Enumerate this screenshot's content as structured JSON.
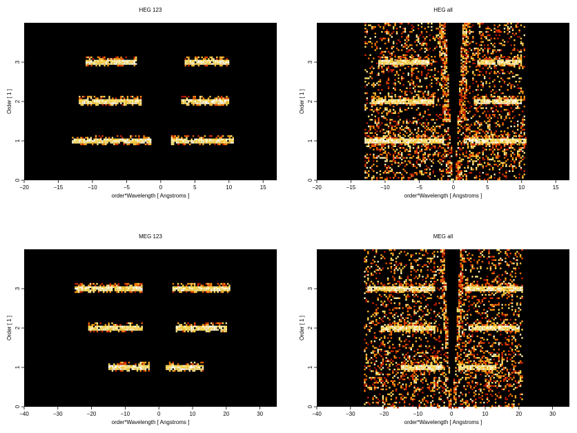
{
  "chart_data": [
    {
      "type": "heatmap",
      "title": "HEG 123",
      "xlabel": "order*Wavelength [ Angstroms ]",
      "ylabel": "Order [ 1 ]",
      "xlim": [
        -20,
        17
      ],
      "ylim": [
        0,
        4
      ],
      "xticks": [
        -20,
        -15,
        -10,
        -5,
        0,
        5,
        10,
        15
      ],
      "yticks": [
        0,
        1,
        2,
        3
      ],
      "colormap": "black-red-orange-yellow-white",
      "background": "#000000",
      "bands": [
        {
          "order": 1,
          "segments": [
            [
              -13,
              -1.5
            ],
            [
              1.5,
              10.5
            ]
          ]
        },
        {
          "order": 2,
          "segments": [
            [
              -12,
              -3
            ],
            [
              3,
              10
            ]
          ]
        },
        {
          "order": 3,
          "segments": [
            [
              -11,
              -3.5
            ],
            [
              3.5,
              10
            ]
          ]
        }
      ],
      "wedges": false
    },
    {
      "type": "heatmap",
      "title": "HEG all",
      "xlabel": "order*Wavelength [ Angstroms ]",
      "ylabel": "Order [ 1 ]",
      "xlim": [
        -20,
        17
      ],
      "ylim": [
        0,
        4
      ],
      "xticks": [
        -20,
        -15,
        -10,
        -5,
        0,
        5,
        10,
        15
      ],
      "yticks": [
        0,
        1,
        2,
        3
      ],
      "colormap": "black-red-orange-yellow-white",
      "background": "#000000",
      "bands": [
        {
          "order": 1,
          "segments": [
            [
              -13,
              -1.5
            ],
            [
              1.5,
              10.5
            ]
          ]
        },
        {
          "order": 2,
          "segments": [
            [
              -12,
              -3
            ],
            [
              3,
              10
            ]
          ]
        },
        {
          "order": 3,
          "segments": [
            [
              -11,
              -3.5
            ],
            [
              3.5,
              10
            ]
          ]
        }
      ],
      "wedges": true,
      "noise_range": [
        -13,
        10.5
      ]
    },
    {
      "type": "heatmap",
      "title": "MEG 123",
      "xlabel": "order*Wavelength [ Angstroms ]",
      "ylabel": "Order [ 1 ]",
      "xlim": [
        -40,
        35
      ],
      "ylim": [
        0,
        4
      ],
      "xticks": [
        -40,
        -30,
        -20,
        -10,
        0,
        10,
        20,
        30
      ],
      "yticks": [
        0,
        1,
        2,
        3
      ],
      "colormap": "black-red-orange-yellow-white",
      "background": "#000000",
      "bands": [
        {
          "order": 1,
          "segments": [
            [
              -15,
              -3
            ],
            [
              2,
              13
            ]
          ]
        },
        {
          "order": 2,
          "segments": [
            [
              -21,
              -5
            ],
            [
              5,
              20
            ]
          ]
        },
        {
          "order": 3,
          "segments": [
            [
              -25,
              -5
            ],
            [
              4,
              21
            ]
          ]
        }
      ],
      "wedges": false
    },
    {
      "type": "heatmap",
      "title": "MEG all",
      "xlabel": "order*Wavelength [ Angstroms ]",
      "ylabel": "Order [ 1 ]",
      "xlim": [
        -40,
        35
      ],
      "ylim": [
        0,
        4
      ],
      "xticks": [
        -40,
        -30,
        -20,
        -10,
        0,
        10,
        20,
        30
      ],
      "yticks": [
        0,
        1,
        2,
        3
      ],
      "colormap": "black-red-orange-yellow-white",
      "background": "#000000",
      "bands": [
        {
          "order": 1,
          "segments": [
            [
              -15,
              -3
            ],
            [
              2,
              13
            ]
          ]
        },
        {
          "order": 2,
          "segments": [
            [
              -21,
              -5
            ],
            [
              5,
              20
            ]
          ]
        },
        {
          "order": 3,
          "segments": [
            [
              -25,
              -5
            ],
            [
              4,
              21
            ]
          ]
        }
      ],
      "wedges": true,
      "noise_range": [
        -26,
        21
      ]
    }
  ]
}
